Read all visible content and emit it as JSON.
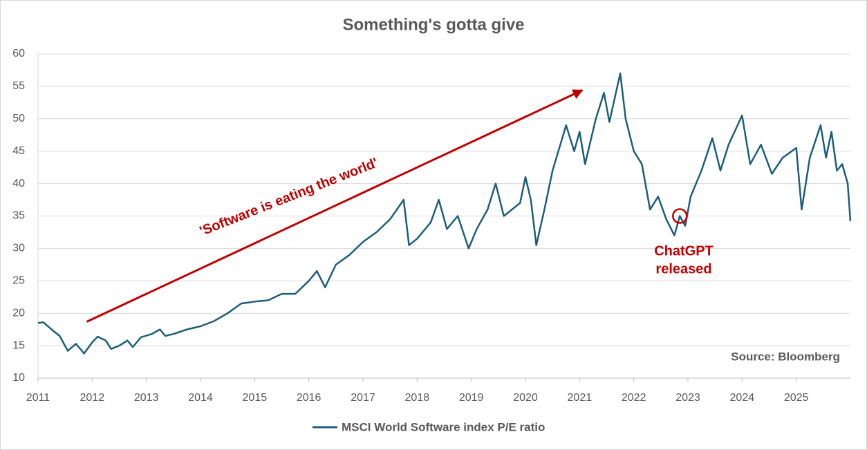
{
  "chart_data": {
    "type": "line",
    "title": "Something's gotta give",
    "source": "Source: Bloomberg",
    "annotations": [
      {
        "text": "'Software is eating the world'"
      },
      {
        "text": [
          "ChatGPT",
          "released"
        ]
      }
    ],
    "xlim": [
      2011,
      2026
    ],
    "xticks": [
      2011,
      2012,
      2013,
      2014,
      2015,
      2016,
      2017,
      2018,
      2019,
      2020,
      2021,
      2022,
      2023,
      2024,
      2025
    ],
    "ylim": [
      10,
      60
    ],
    "yticks": [
      10,
      15,
      20,
      25,
      30,
      35,
      40,
      45,
      50,
      55,
      60
    ],
    "grid": true,
    "legend": "bottom",
    "x": [
      2011.0,
      2011.1,
      2011.25,
      2011.4,
      2011.55,
      2011.7,
      2011.85,
      2012.0,
      2012.1,
      2012.25,
      2012.35,
      2012.5,
      2012.65,
      2012.75,
      2012.9,
      2013.1,
      2013.25,
      2013.35,
      2013.5,
      2013.75,
      2014.0,
      2014.25,
      2014.5,
      2014.75,
      2015.0,
      2015.25,
      2015.5,
      2015.75,
      2016.0,
      2016.15,
      2016.3,
      2016.5,
      2016.75,
      2017.0,
      2017.25,
      2017.5,
      2017.75,
      2017.85,
      2018.0,
      2018.25,
      2018.4,
      2018.55,
      2018.75,
      2018.95,
      2019.1,
      2019.3,
      2019.45,
      2019.6,
      2019.75,
      2019.9,
      2020.0,
      2020.1,
      2020.2,
      2020.35,
      2020.5,
      2020.75,
      2020.9,
      2021.0,
      2021.1,
      2021.3,
      2021.45,
      2021.55,
      2021.75,
      2021.85,
      2022.0,
      2022.15,
      2022.3,
      2022.45,
      2022.6,
      2022.75,
      2022.85,
      2022.95,
      2023.05,
      2023.25,
      2023.45,
      2023.6,
      2023.75,
      2024.0,
      2024.15,
      2024.35,
      2024.55,
      2024.75,
      2025.0,
      2025.1,
      2025.25,
      2025.45,
      2025.55,
      2025.65,
      2025.75,
      2025.85,
      2025.95,
      2026.0
    ],
    "series": [
      {
        "name": "MSCI World Software index P/E ratio",
        "color": "#1b5e7b",
        "values": [
          18.5,
          18.6,
          17.5,
          16.5,
          14.2,
          15.3,
          13.8,
          15.5,
          16.4,
          15.8,
          14.5,
          15.0,
          15.8,
          14.8,
          16.3,
          16.8,
          17.5,
          16.5,
          16.8,
          17.5,
          18.0,
          18.8,
          20.0,
          21.5,
          21.8,
          22.0,
          23.0,
          23.0,
          25.0,
          26.5,
          24.0,
          27.5,
          29.0,
          31.0,
          32.5,
          34.5,
          37.5,
          30.5,
          31.5,
          34.0,
          37.5,
          33.0,
          35.0,
          30.0,
          33.0,
          36.0,
          40.0,
          35.0,
          36.0,
          37.0,
          41.0,
          37.5,
          30.5,
          36.0,
          42.0,
          49.0,
          45.0,
          48.0,
          43.0,
          50.0,
          54.0,
          49.5,
          57.0,
          50.0,
          45.0,
          43.0,
          36.0,
          38.0,
          34.5,
          32.0,
          35.0,
          33.5,
          38.0,
          42.0,
          47.0,
          42.0,
          46.0,
          50.5,
          43.0,
          46.0,
          41.5,
          44.0,
          45.5,
          36.0,
          44.0,
          49.0,
          44.0,
          48.0,
          42.0,
          43.0,
          40.0,
          34.2
        ]
      }
    ]
  }
}
